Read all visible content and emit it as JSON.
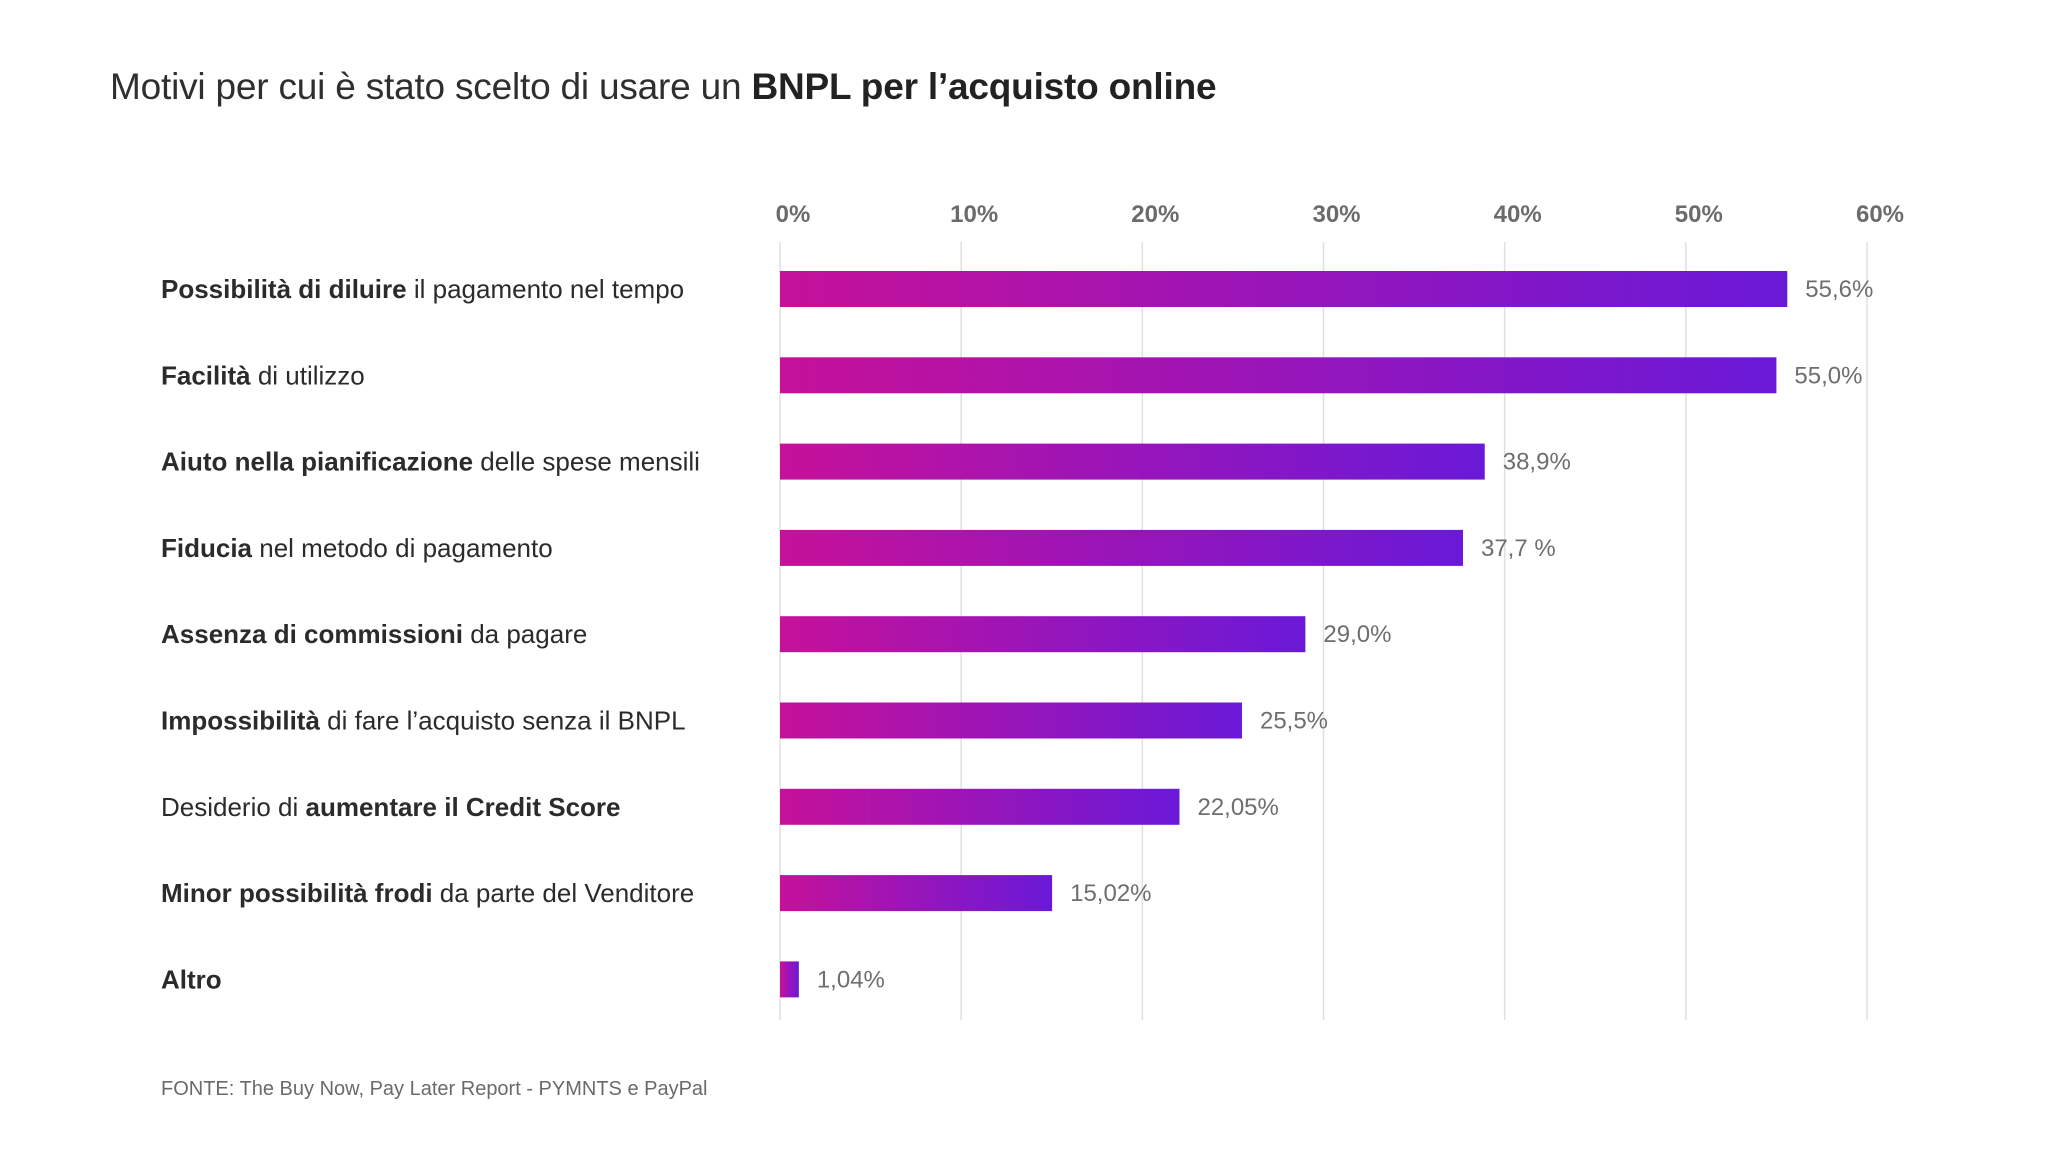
{
  "title": {
    "prefix": "Motivi per cui è stato scelto di usare un ",
    "bold": "BNPL per l’acquisto online"
  },
  "source": "FONTE: The Buy Now, Pay Later Report - PYMNTS e  PayPal",
  "colors": {
    "bar_start": "#c6119a",
    "bar_end": "#6a19d8",
    "grid": "#e0e0e0"
  },
  "chart_data": {
    "type": "bar",
    "orientation": "horizontal",
    "xlim": [
      0,
      60
    ],
    "ticks": [
      "0%",
      "10%",
      "20%",
      "30%",
      "40%",
      "50%",
      "60%"
    ],
    "tick_values": [
      0,
      10,
      20,
      30,
      40,
      50,
      60
    ],
    "grid": true,
    "categories": [
      {
        "parts": [
          {
            "t": "Possibilità di diluire",
            "b": true
          },
          {
            "t": " il pagamento nel tempo",
            "b": false
          }
        ]
      },
      {
        "parts": [
          {
            "t": "Facilità",
            "b": true
          },
          {
            "t": " di utilizzo",
            "b": false
          }
        ]
      },
      {
        "parts": [
          {
            "t": "Aiuto nella pianificazione",
            "b": true
          },
          {
            "t": " delle spese mensili",
            "b": false
          }
        ]
      },
      {
        "parts": [
          {
            "t": "Fiducia",
            "b": true
          },
          {
            "t": " nel metodo di pagamento",
            "b": false
          }
        ]
      },
      {
        "parts": [
          {
            "t": "Assenza di commissioni",
            "b": true
          },
          {
            "t": " da pagare",
            "b": false
          }
        ]
      },
      {
        "parts": [
          {
            "t": "Impossibilità",
            "b": true
          },
          {
            "t": " di fare l’acquisto senza il BNPL",
            "b": false
          }
        ]
      },
      {
        "parts": [
          {
            "t": "Desiderio di ",
            "b": false
          },
          {
            "t": "aumentare il Credit Score",
            "b": true
          }
        ]
      },
      {
        "parts": [
          {
            "t": "Minor possibilità frodi",
            "b": true
          },
          {
            "t": " da parte del Venditore",
            "b": false
          }
        ]
      },
      {
        "parts": [
          {
            "t": "Altro",
            "b": true
          }
        ]
      }
    ],
    "values": [
      55.6,
      55.0,
      38.9,
      37.7,
      29.0,
      25.5,
      22.05,
      15.02,
      1.04
    ],
    "value_labels": [
      "55,6%",
      "55,0%",
      "38,9%",
      "37,7 %",
      "29,0%",
      "25,5%",
      "22,05%",
      "15,02%",
      "1,04%"
    ]
  }
}
